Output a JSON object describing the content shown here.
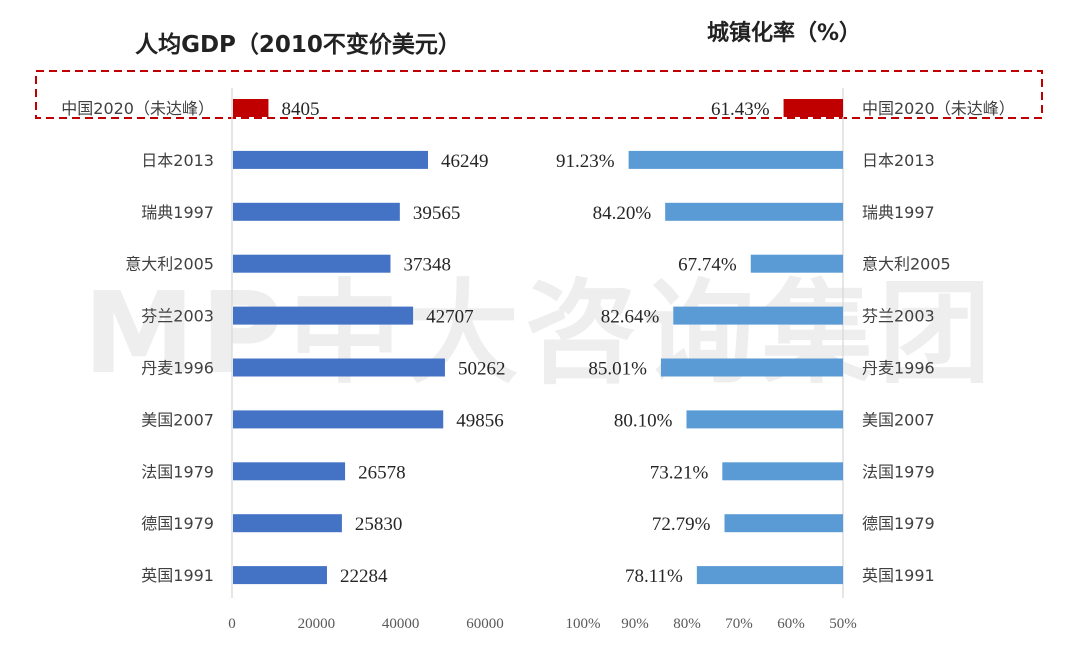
{
  "watermark": "MP中大咨询集团",
  "chart_data": [
    {
      "type": "bar",
      "orientation": "horizontal",
      "title": "人均GDP（2010不变价美元）",
      "categories": [
        "中国2020（未达峰）",
        "日本2013",
        "瑞典1997",
        "意大利2005",
        "芬兰2003",
        "丹麦1996",
        "美国2007",
        "法国1979",
        "德国1979",
        "英国1991"
      ],
      "values": [
        8405,
        46249,
        39565,
        37348,
        42707,
        50262,
        49856,
        26578,
        25830,
        22284
      ],
      "value_labels": [
        "8405",
        "46249",
        "39565",
        "37348",
        "42707",
        "50262",
        "49856",
        "26578",
        "25830",
        "22284"
      ],
      "xlim": [
        0,
        72000
      ],
      "ticks": [
        "0",
        "20000",
        "40000",
        "60000"
      ],
      "tick_values": [
        0,
        20000,
        40000,
        60000
      ],
      "highlight_category": "中国2020（未达峰）",
      "highlight_color": "#c00000",
      "bar_color": "#4472c4"
    },
    {
      "type": "bar",
      "orientation": "horizontal",
      "reversed_axis": true,
      "title": "城镇化率（%）",
      "categories": [
        "中国2020（未达峰）",
        "日本2013",
        "瑞典1997",
        "意大利2005",
        "芬兰2003",
        "丹麦1996",
        "美国2007",
        "法国1979",
        "德国1979",
        "英国1991"
      ],
      "values": [
        61.43,
        91.23,
        84.2,
        67.74,
        82.64,
        85.01,
        80.1,
        73.21,
        72.79,
        78.11
      ],
      "value_labels": [
        "61.43%",
        "91.23%",
        "84.20%",
        "67.74%",
        "82.64%",
        "85.01%",
        "80.10%",
        "73.21%",
        "72.79%",
        "78.11%"
      ],
      "xlim": [
        50,
        100
      ],
      "ticks": [
        "100%",
        "90%",
        "80%",
        "70%",
        "60%",
        "50%"
      ],
      "tick_values": [
        100,
        90,
        80,
        70,
        60,
        50
      ],
      "highlight_category": "中国2020（未达峰）",
      "highlight_color": "#c00000",
      "bar_color": "#5b9bd5"
    }
  ]
}
